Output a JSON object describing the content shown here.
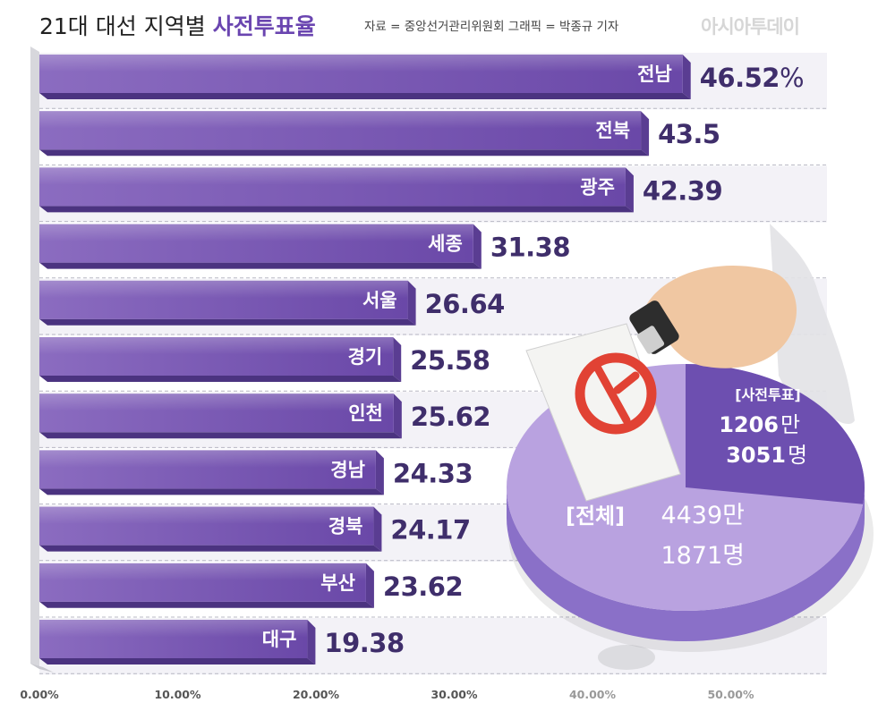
{
  "header": {
    "title": "21대 대선 지역별",
    "title_accent": "사전투표율",
    "credit": "자료 = 중앙선거관리위원회  그래픽 = 박종규 기자",
    "logo_text": "아시아투데이"
  },
  "chart_data": {
    "type": "bar",
    "orientation": "horizontal",
    "categories": [
      "전남",
      "전북",
      "광주",
      "세종",
      "서울",
      "경기",
      "인천",
      "경남",
      "경북",
      "부산",
      "대구"
    ],
    "values": [
      46.52,
      43.5,
      42.39,
      31.38,
      26.64,
      25.58,
      25.62,
      24.33,
      24.17,
      23.62,
      19.38
    ],
    "value_labels": [
      "46.52",
      "43.5",
      "42.39",
      "31.38",
      "26.64",
      "25.58",
      "25.62",
      "24.33",
      "24.17",
      "23.62",
      "19.38"
    ],
    "first_value_unit": "%",
    "x_ticks": [
      "0.00%",
      "10.00%",
      "20.00%",
      "30.00%",
      "40.00%",
      "50.00%"
    ],
    "xlim": [
      0,
      55
    ],
    "grid": true,
    "legend": "none"
  },
  "pie_inset": {
    "type": "pie",
    "slices": [
      {
        "label": "[사전투표]",
        "value_line1": "1206",
        "unit1": "만",
        "value_line2": "3051",
        "unit2": "명"
      },
      {
        "label": "[전체]",
        "value_line1": "4439만",
        "value_line2": "1871명"
      }
    ],
    "early_votes": 12063051,
    "total_voters": 44391871
  },
  "colors": {
    "bar_main": "#8b6cc0",
    "bar_dark": "#6a48a8",
    "bar_side": "#5a3d92",
    "value_text": "#3f2e6b",
    "pie_light": "#b9a2e0",
    "pie_dark": "#6d4fb0",
    "pie_side": "#8a70c8"
  },
  "icons": [
    "hand-stamping-icon",
    "ballot-paper-icon",
    "vote-stamp-icon",
    "korea-map-silhouette"
  ]
}
